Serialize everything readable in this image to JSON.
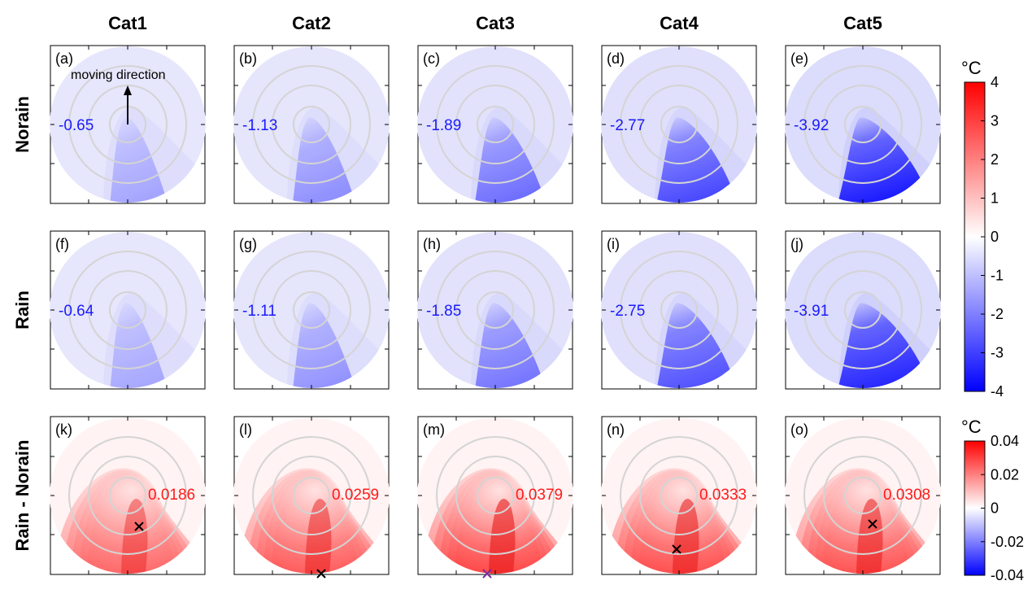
{
  "chart_data": {
    "type": "heatmap",
    "columns": [
      "Cat1",
      "Cat2",
      "Cat3",
      "Cat4",
      "Cat5"
    ],
    "rows": [
      "Norain",
      "Rain",
      "Rain - Norain"
    ],
    "annotation": "moving direction",
    "panels": [
      {
        "label": "(a)",
        "row": 0,
        "col": 0,
        "value": "-0.65"
      },
      {
        "label": "(b)",
        "row": 0,
        "col": 1,
        "value": "-1.13"
      },
      {
        "label": "(c)",
        "row": 0,
        "col": 2,
        "value": "-1.89"
      },
      {
        "label": "(d)",
        "row": 0,
        "col": 3,
        "value": "-2.77"
      },
      {
        "label": "(e)",
        "row": 0,
        "col": 4,
        "value": "-3.92"
      },
      {
        "label": "(f)",
        "row": 1,
        "col": 0,
        "value": "-0.64"
      },
      {
        "label": "(g)",
        "row": 1,
        "col": 1,
        "value": "-1.11"
      },
      {
        "label": "(h)",
        "row": 1,
        "col": 2,
        "value": "-1.85"
      },
      {
        "label": "(i)",
        "row": 1,
        "col": 3,
        "value": "-2.75"
      },
      {
        "label": "(j)",
        "row": 1,
        "col": 4,
        "value": "-3.91"
      },
      {
        "label": "(k)",
        "row": 2,
        "col": 0,
        "value": "0.0186"
      },
      {
        "label": "(l)",
        "row": 2,
        "col": 1,
        "value": "0.0259"
      },
      {
        "label": "(m)",
        "row": 2,
        "col": 2,
        "value": "0.0379"
      },
      {
        "label": "(n)",
        "row": 2,
        "col": 3,
        "value": "0.0333"
      },
      {
        "label": "(o)",
        "row": 2,
        "col": 4,
        "value": "0.0308"
      }
    ],
    "colorbars": [
      {
        "unit": "°C",
        "ticks": [
          "4",
          "3",
          "2",
          "1",
          "0",
          "-1",
          "-2",
          "-3",
          "-4"
        ],
        "range": [
          -4,
          4
        ]
      },
      {
        "unit": "°C",
        "ticks": [
          "0.04",
          "0.02",
          "0",
          "-0.02",
          "-0.04"
        ],
        "range": [
          -0.04,
          0.04
        ]
      }
    ],
    "colors": {
      "positive": "#ff0000",
      "negative": "#0000ff",
      "zero": "#ffffff",
      "ring": "#d6d6d6",
      "neg_label": "#1a1aff",
      "pos_label": "#ff1a1a"
    }
  }
}
